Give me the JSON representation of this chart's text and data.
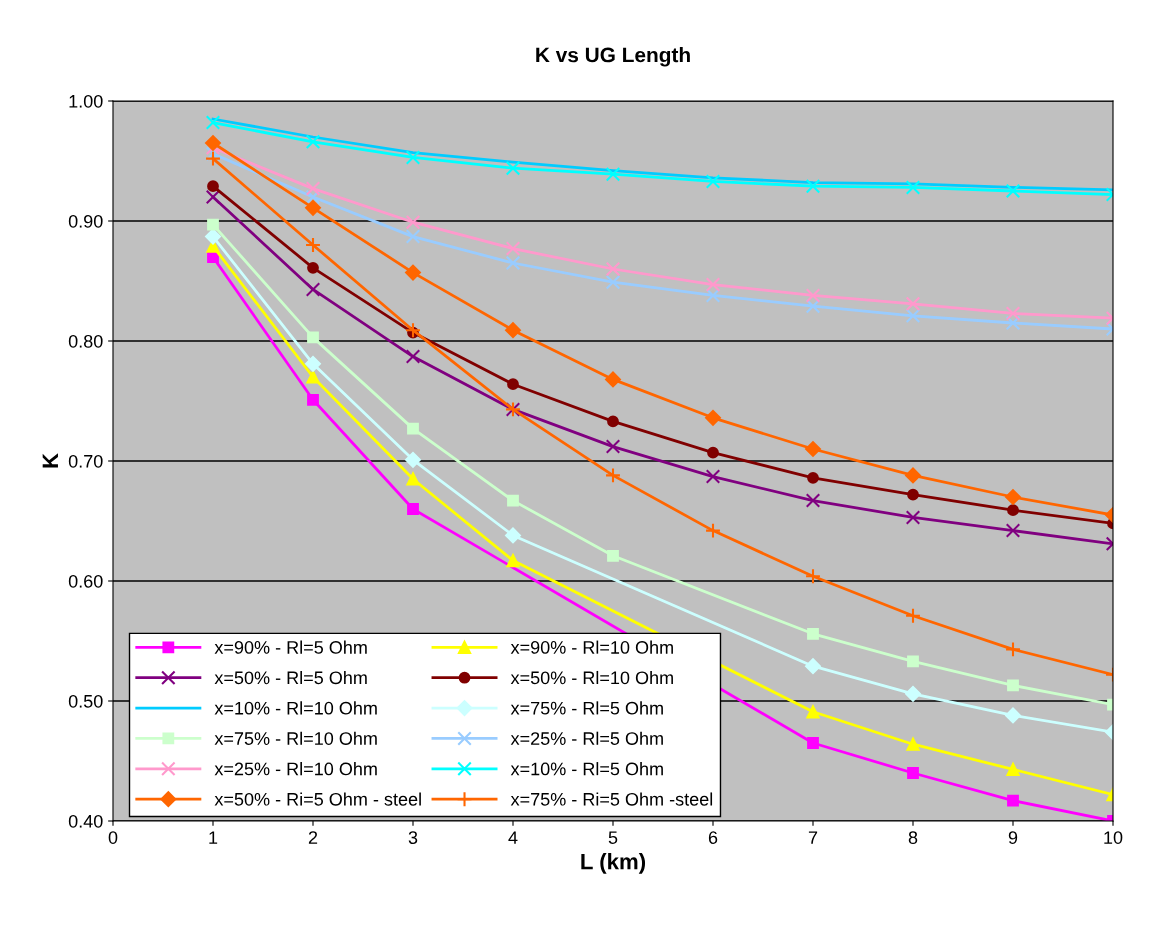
{
  "chart_data": {
    "type": "line",
    "title": "K vs UG Length",
    "xlabel": "L (km)",
    "ylabel": "K",
    "x": [
      1,
      2,
      3,
      4,
      5,
      6,
      7,
      8,
      9,
      10
    ],
    "xlim": [
      0,
      10
    ],
    "xticks": [
      0,
      1,
      2,
      3,
      4,
      5,
      6,
      7,
      8,
      9,
      10
    ],
    "ylim": [
      0.4,
      1.0
    ],
    "yticks": [
      {
        "value": 0.4,
        "label": "0.40"
      },
      {
        "value": 0.5,
        "label": "0.50"
      },
      {
        "value": 0.6,
        "label": "0.60"
      },
      {
        "value": 0.7,
        "label": "0.70"
      },
      {
        "value": 0.8,
        "label": "0.80"
      },
      {
        "value": 0.9,
        "label": "0.90"
      },
      {
        "value": 1.0,
        "label": "1.00"
      }
    ],
    "grid": "y",
    "legend": "bottom left",
    "series": [
      {
        "name": "x=90% - Rl=5 Ohm",
        "color": "#ff00ff",
        "marker": "square",
        "values": [
          0.87,
          0.751,
          0.66,
          null,
          null,
          null,
          0.465,
          0.44,
          0.417,
          0.4
        ]
      },
      {
        "name": "x=90% - Rl=10 Ohm",
        "color": "#ffff00",
        "marker": "triangle",
        "values": [
          0.879,
          0.77,
          0.685,
          0.617,
          null,
          null,
          0.491,
          0.464,
          0.443,
          0.422
        ]
      },
      {
        "name": "x=50% - Rl=5 Ohm",
        "color": "#800080",
        "marker": "cross",
        "values": [
          0.92,
          0.843,
          0.787,
          0.743,
          0.712,
          0.687,
          0.667,
          0.653,
          0.642,
          0.631
        ]
      },
      {
        "name": "x=50% - Rl=10 Ohm",
        "color": "#800000",
        "marker": "circle",
        "values": [
          0.929,
          0.861,
          0.807,
          0.764,
          0.733,
          0.707,
          0.686,
          0.672,
          0.659,
          0.648
        ]
      },
      {
        "name": "x=10% - Rl=10 Ohm",
        "color": "#00ccff",
        "marker": "none",
        "values": [
          0.985,
          0.97,
          0.957,
          0.949,
          0.942,
          0.936,
          0.932,
          0.931,
          0.928,
          0.926
        ]
      },
      {
        "name": "x=75% - Rl=5 Ohm",
        "color": "#ccffff",
        "marker": "diamond",
        "values": [
          0.887,
          0.781,
          0.701,
          0.638,
          null,
          null,
          0.529,
          0.506,
          0.488,
          0.474
        ]
      },
      {
        "name": "x=75% - Rl=10 Ohm",
        "color": "#ccffcc",
        "marker": "square",
        "values": [
          0.897,
          0.803,
          0.727,
          0.667,
          0.621,
          null,
          0.556,
          0.533,
          0.513,
          0.497
        ]
      },
      {
        "name": "x=25% - Rl=5 Ohm",
        "color": "#99ccff",
        "marker": "cross",
        "values": [
          0.956,
          0.92,
          0.887,
          0.865,
          0.849,
          0.838,
          0.829,
          0.821,
          0.815,
          0.81
        ]
      },
      {
        "name": "x=25% - Rl=10 Ohm",
        "color": "#ff99cc",
        "marker": "cross",
        "values": [
          0.961,
          0.927,
          0.899,
          0.877,
          0.86,
          0.847,
          0.838,
          0.831,
          0.823,
          0.819
        ]
      },
      {
        "name": "x=10% - Rl=5 Ohm",
        "color": "#00ffff",
        "marker": "cross",
        "values": [
          0.982,
          0.966,
          0.953,
          0.944,
          0.939,
          0.933,
          0.929,
          0.928,
          0.925,
          0.922
        ]
      },
      {
        "name": "x=50% - Ri=5 Ohm - steel",
        "color": "#ff6600",
        "marker": "diamond",
        "values": [
          0.965,
          0.911,
          0.857,
          0.809,
          0.768,
          0.736,
          0.71,
          0.688,
          0.67,
          0.655
        ]
      },
      {
        "name": "x=75% - Ri=5 Ohm -steel",
        "color": "#ff6600",
        "marker": "plus",
        "values": [
          0.952,
          0.88,
          0.809,
          0.743,
          0.688,
          0.642,
          0.604,
          0.571,
          0.543,
          0.522
        ]
      }
    ]
  }
}
